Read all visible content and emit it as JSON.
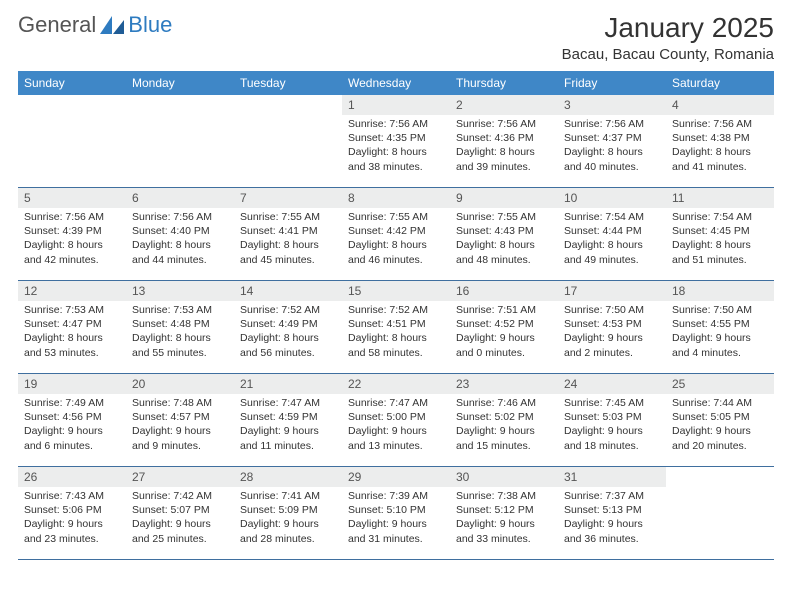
{
  "logo": {
    "part1": "General",
    "part2": "Blue"
  },
  "title": "January 2025",
  "location": "Bacau, Bacau County, Romania",
  "colors": {
    "header_bg": "#3f87c7",
    "header_text": "#ffffff",
    "daynum_bg": "#eceded",
    "row_border": "#3f6f9f",
    "body_text": "#333333",
    "logo_gray": "#555555",
    "logo_blue": "#2e7bc0"
  },
  "daysOfWeek": [
    "Sunday",
    "Monday",
    "Tuesday",
    "Wednesday",
    "Thursday",
    "Friday",
    "Saturday"
  ],
  "weeks": [
    [
      {
        "n": "",
        "lines": []
      },
      {
        "n": "",
        "lines": []
      },
      {
        "n": "",
        "lines": []
      },
      {
        "n": "1",
        "lines": [
          "Sunrise: 7:56 AM",
          "Sunset: 4:35 PM",
          "Daylight: 8 hours",
          "and 38 minutes."
        ]
      },
      {
        "n": "2",
        "lines": [
          "Sunrise: 7:56 AM",
          "Sunset: 4:36 PM",
          "Daylight: 8 hours",
          "and 39 minutes."
        ]
      },
      {
        "n": "3",
        "lines": [
          "Sunrise: 7:56 AM",
          "Sunset: 4:37 PM",
          "Daylight: 8 hours",
          "and 40 minutes."
        ]
      },
      {
        "n": "4",
        "lines": [
          "Sunrise: 7:56 AM",
          "Sunset: 4:38 PM",
          "Daylight: 8 hours",
          "and 41 minutes."
        ]
      }
    ],
    [
      {
        "n": "5",
        "lines": [
          "Sunrise: 7:56 AM",
          "Sunset: 4:39 PM",
          "Daylight: 8 hours",
          "and 42 minutes."
        ]
      },
      {
        "n": "6",
        "lines": [
          "Sunrise: 7:56 AM",
          "Sunset: 4:40 PM",
          "Daylight: 8 hours",
          "and 44 minutes."
        ]
      },
      {
        "n": "7",
        "lines": [
          "Sunrise: 7:55 AM",
          "Sunset: 4:41 PM",
          "Daylight: 8 hours",
          "and 45 minutes."
        ]
      },
      {
        "n": "8",
        "lines": [
          "Sunrise: 7:55 AM",
          "Sunset: 4:42 PM",
          "Daylight: 8 hours",
          "and 46 minutes."
        ]
      },
      {
        "n": "9",
        "lines": [
          "Sunrise: 7:55 AM",
          "Sunset: 4:43 PM",
          "Daylight: 8 hours",
          "and 48 minutes."
        ]
      },
      {
        "n": "10",
        "lines": [
          "Sunrise: 7:54 AM",
          "Sunset: 4:44 PM",
          "Daylight: 8 hours",
          "and 49 minutes."
        ]
      },
      {
        "n": "11",
        "lines": [
          "Sunrise: 7:54 AM",
          "Sunset: 4:45 PM",
          "Daylight: 8 hours",
          "and 51 minutes."
        ]
      }
    ],
    [
      {
        "n": "12",
        "lines": [
          "Sunrise: 7:53 AM",
          "Sunset: 4:47 PM",
          "Daylight: 8 hours",
          "and 53 minutes."
        ]
      },
      {
        "n": "13",
        "lines": [
          "Sunrise: 7:53 AM",
          "Sunset: 4:48 PM",
          "Daylight: 8 hours",
          "and 55 minutes."
        ]
      },
      {
        "n": "14",
        "lines": [
          "Sunrise: 7:52 AM",
          "Sunset: 4:49 PM",
          "Daylight: 8 hours",
          "and 56 minutes."
        ]
      },
      {
        "n": "15",
        "lines": [
          "Sunrise: 7:52 AM",
          "Sunset: 4:51 PM",
          "Daylight: 8 hours",
          "and 58 minutes."
        ]
      },
      {
        "n": "16",
        "lines": [
          "Sunrise: 7:51 AM",
          "Sunset: 4:52 PM",
          "Daylight: 9 hours",
          "and 0 minutes."
        ]
      },
      {
        "n": "17",
        "lines": [
          "Sunrise: 7:50 AM",
          "Sunset: 4:53 PM",
          "Daylight: 9 hours",
          "and 2 minutes."
        ]
      },
      {
        "n": "18",
        "lines": [
          "Sunrise: 7:50 AM",
          "Sunset: 4:55 PM",
          "Daylight: 9 hours",
          "and 4 minutes."
        ]
      }
    ],
    [
      {
        "n": "19",
        "lines": [
          "Sunrise: 7:49 AM",
          "Sunset: 4:56 PM",
          "Daylight: 9 hours",
          "and 6 minutes."
        ]
      },
      {
        "n": "20",
        "lines": [
          "Sunrise: 7:48 AM",
          "Sunset: 4:57 PM",
          "Daylight: 9 hours",
          "and 9 minutes."
        ]
      },
      {
        "n": "21",
        "lines": [
          "Sunrise: 7:47 AM",
          "Sunset: 4:59 PM",
          "Daylight: 9 hours",
          "and 11 minutes."
        ]
      },
      {
        "n": "22",
        "lines": [
          "Sunrise: 7:47 AM",
          "Sunset: 5:00 PM",
          "Daylight: 9 hours",
          "and 13 minutes."
        ]
      },
      {
        "n": "23",
        "lines": [
          "Sunrise: 7:46 AM",
          "Sunset: 5:02 PM",
          "Daylight: 9 hours",
          "and 15 minutes."
        ]
      },
      {
        "n": "24",
        "lines": [
          "Sunrise: 7:45 AM",
          "Sunset: 5:03 PM",
          "Daylight: 9 hours",
          "and 18 minutes."
        ]
      },
      {
        "n": "25",
        "lines": [
          "Sunrise: 7:44 AM",
          "Sunset: 5:05 PM",
          "Daylight: 9 hours",
          "and 20 minutes."
        ]
      }
    ],
    [
      {
        "n": "26",
        "lines": [
          "Sunrise: 7:43 AM",
          "Sunset: 5:06 PM",
          "Daylight: 9 hours",
          "and 23 minutes."
        ]
      },
      {
        "n": "27",
        "lines": [
          "Sunrise: 7:42 AM",
          "Sunset: 5:07 PM",
          "Daylight: 9 hours",
          "and 25 minutes."
        ]
      },
      {
        "n": "28",
        "lines": [
          "Sunrise: 7:41 AM",
          "Sunset: 5:09 PM",
          "Daylight: 9 hours",
          "and 28 minutes."
        ]
      },
      {
        "n": "29",
        "lines": [
          "Sunrise: 7:39 AM",
          "Sunset: 5:10 PM",
          "Daylight: 9 hours",
          "and 31 minutes."
        ]
      },
      {
        "n": "30",
        "lines": [
          "Sunrise: 7:38 AM",
          "Sunset: 5:12 PM",
          "Daylight: 9 hours",
          "and 33 minutes."
        ]
      },
      {
        "n": "31",
        "lines": [
          "Sunrise: 7:37 AM",
          "Sunset: 5:13 PM",
          "Daylight: 9 hours",
          "and 36 minutes."
        ]
      },
      {
        "n": "",
        "lines": []
      }
    ]
  ]
}
